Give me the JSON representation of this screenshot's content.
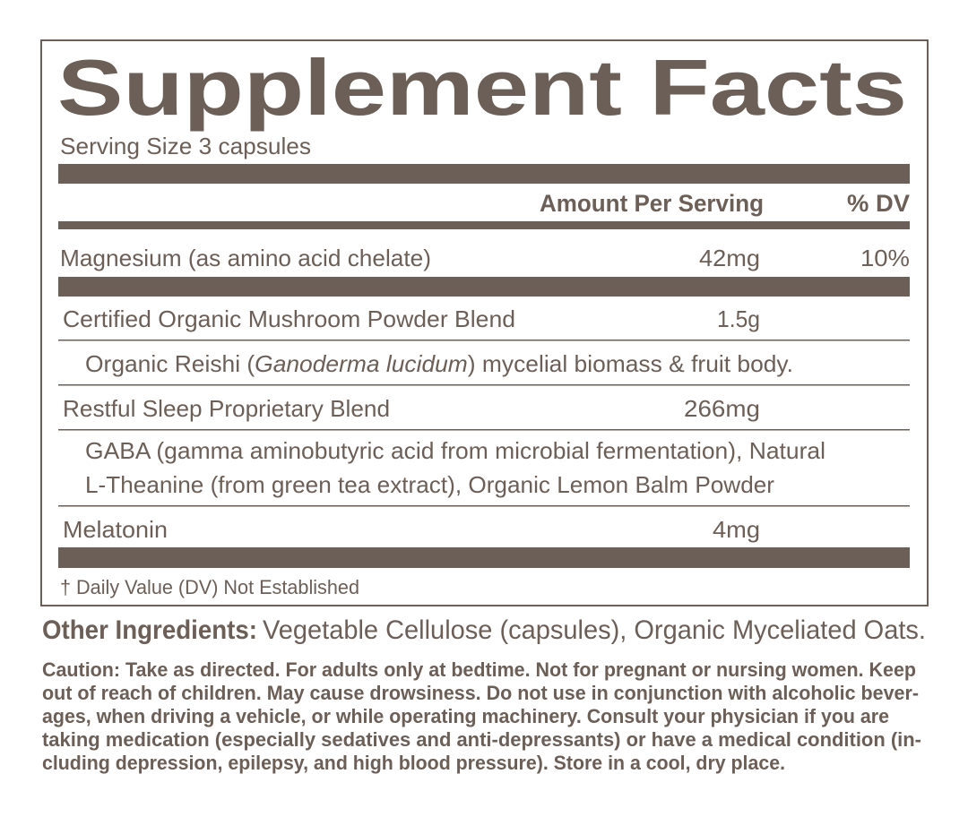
{
  "header": {
    "title": "Supplement Facts",
    "serving_size": "Serving Size 3 capsules"
  },
  "table": {
    "columns": [
      "Amount Per Serving",
      "% DV"
    ],
    "rows": [
      {
        "name": "Magnesium (as amino acid chelate)",
        "amount": "42mg",
        "dv": "10%"
      },
      {
        "name": "Certified Organic Mushroom Powder Blend",
        "amount": "1.5g"
      },
      {
        "detail": [
          "Organic Reishi (",
          "Ganoderma lucidum",
          ") mycelial biomass & fruit body."
        ]
      },
      {
        "name": "Restful Sleep Proprietary Blend",
        "amount": "266mg"
      },
      {
        "detail": [
          "GABA (gamma aminobutyric acid from microbial fermentation), Natural",
          "L-Theanine (from green tea extract), Organic Lemon Balm Powder"
        ]
      },
      {
        "name": "Melatonin",
        "amount": "4mg"
      }
    ],
    "footnote": "† Daily Value (DV) Not Established"
  },
  "other_ingredients": {
    "label": "Other Ingredients:",
    "text": "Vegetable Cellulose (capsules), Organic Myceliated Oats."
  },
  "caution": [
    "Caution: Take as directed. For adults only at bedtime. Not for pregnant or nursing women. Keep",
    "out of reach of children. May cause drowsiness. Do not use in conjunction with alcoholic bever-",
    "ages, when driving a vehicle, or while operating machinery. Consult your physician if you are",
    "taking medication (especially sedatives and anti-depressants) or have a medical condition (in-",
    "cluding depression, epilepsy, and high blood pressure). Store in a cool, dry place."
  ]
}
